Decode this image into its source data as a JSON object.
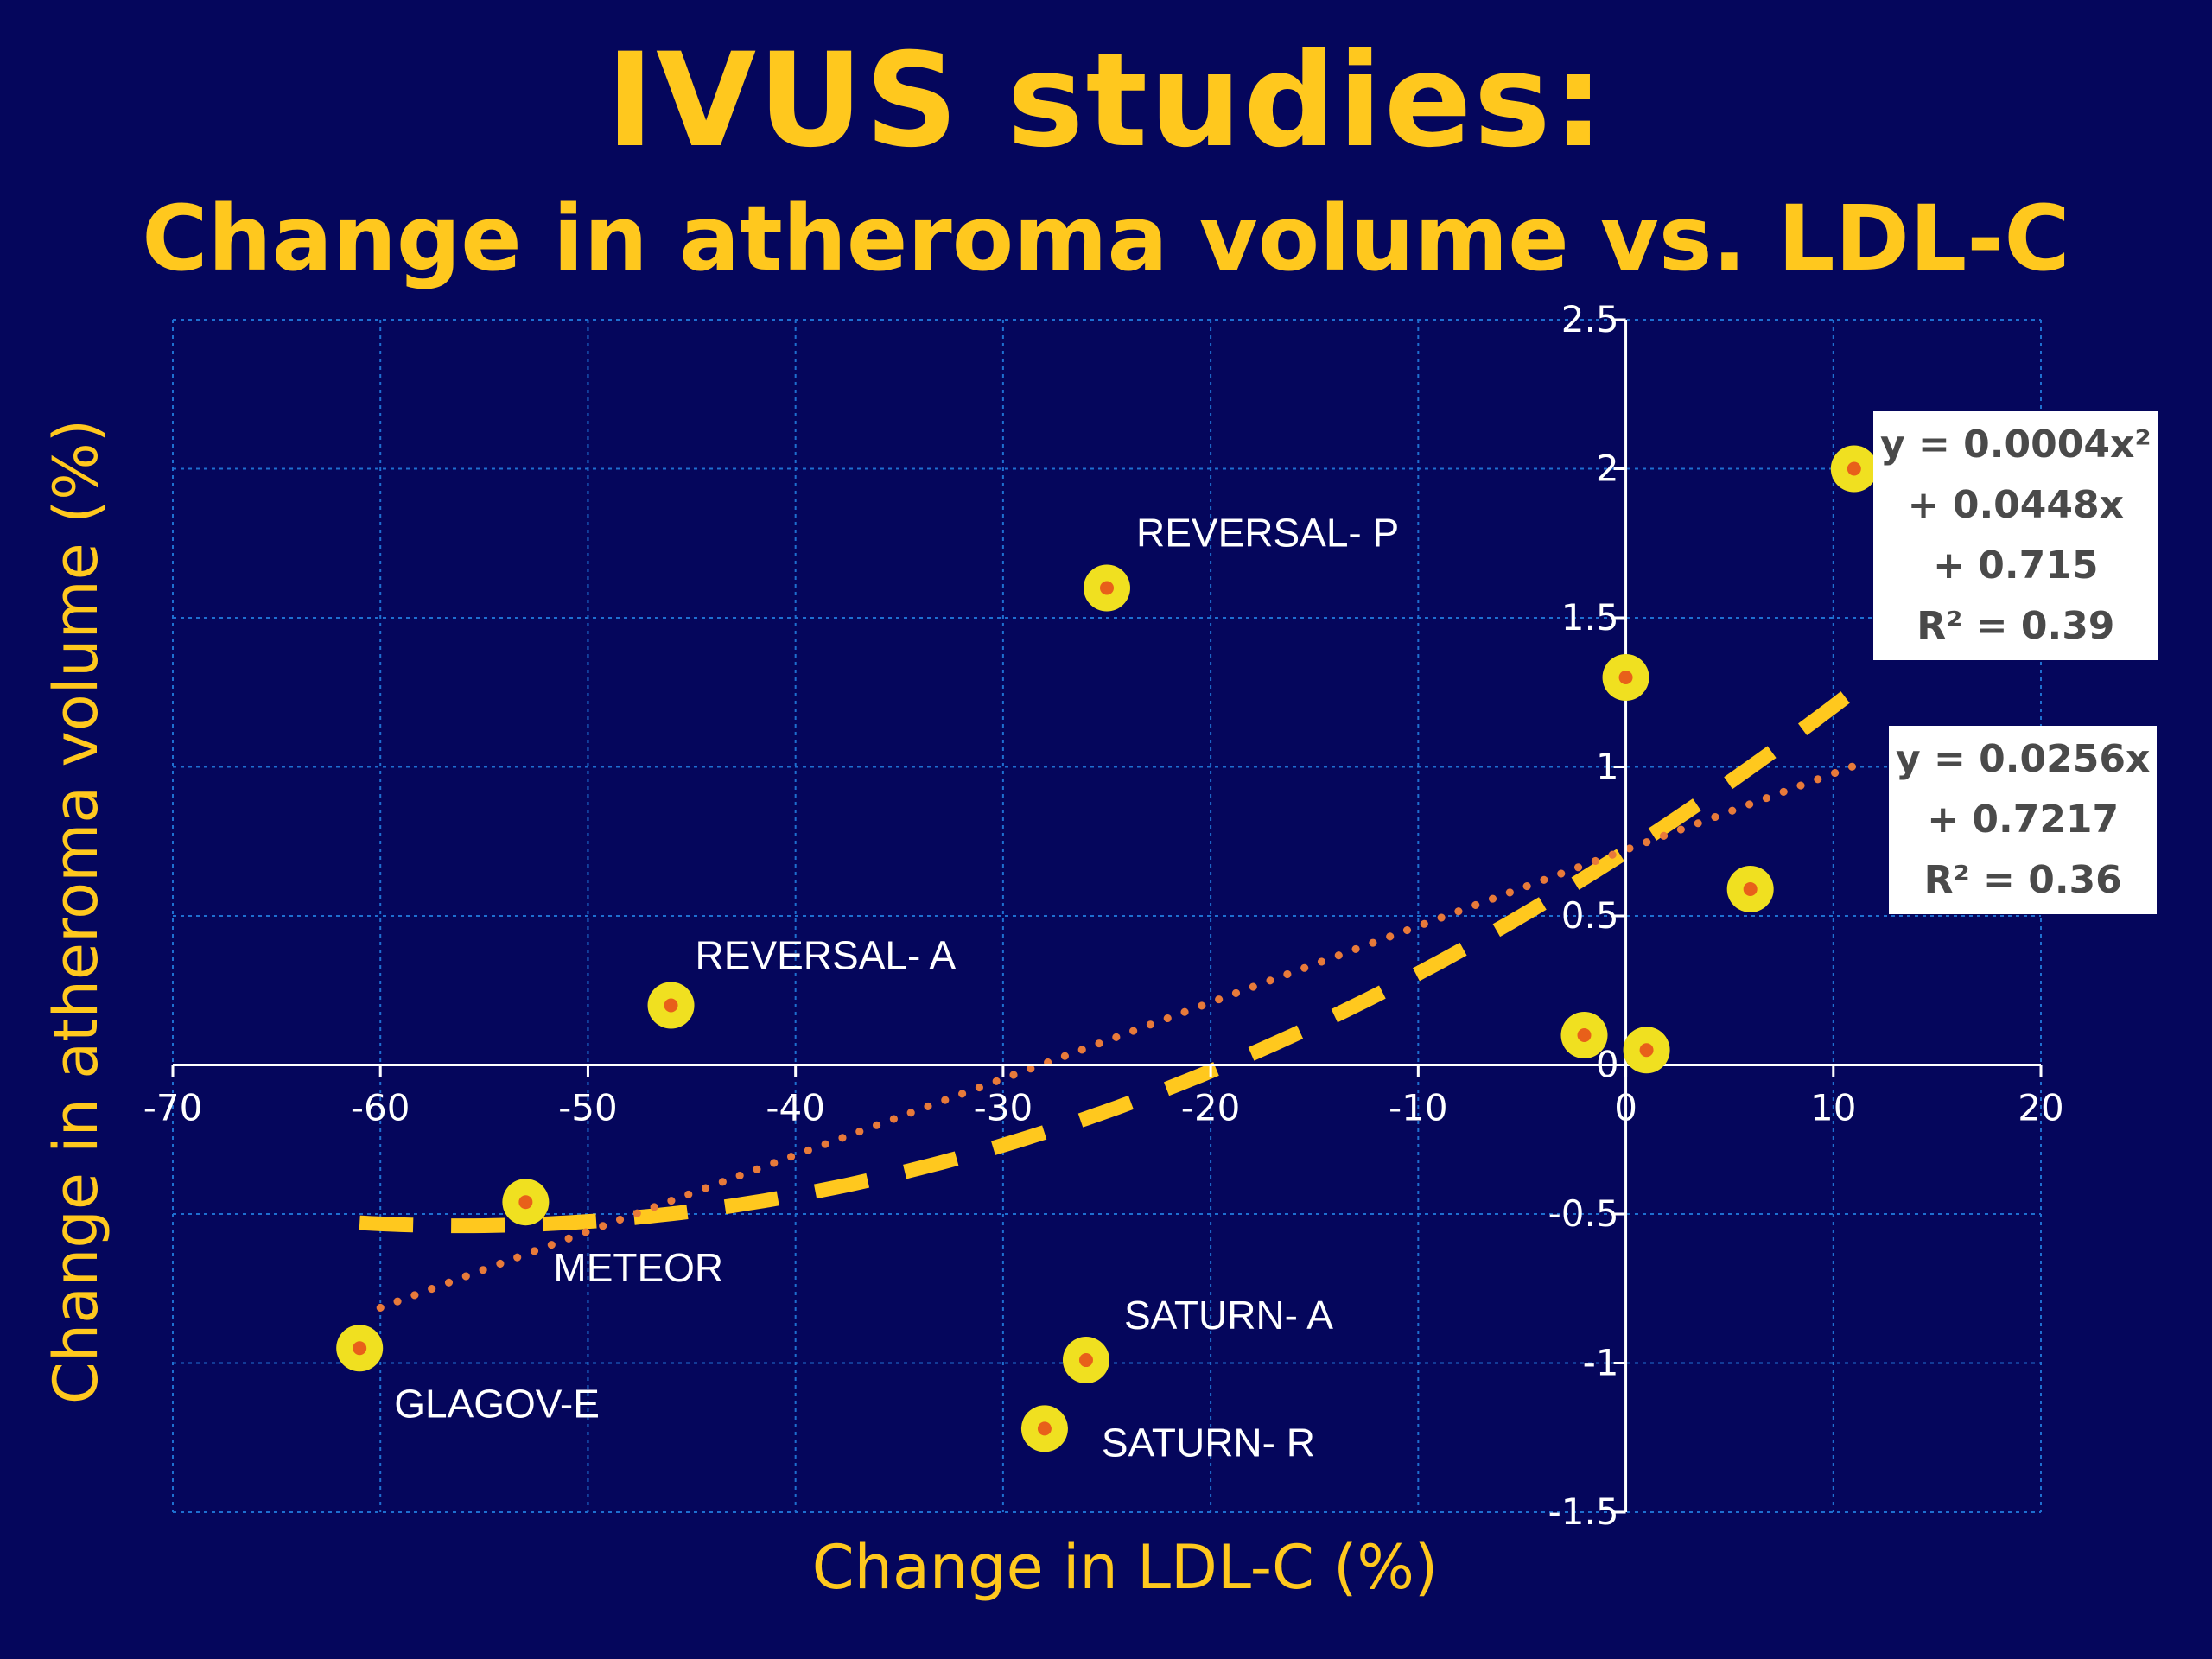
{
  "slide": {
    "title": "IVUS studies:",
    "subtitle": "Change in atheroma volume vs.  LDL-C"
  },
  "colors": {
    "background": "#05065c",
    "title": "#ffc81e",
    "marker_fill": "#f0e020",
    "marker_center": "#e8601a",
    "poly_trend": "#ffc81e",
    "linear_trend": "#e87a3a",
    "grid": "#1e6fd0",
    "axis": "#ffffff"
  },
  "chart_data": {
    "type": "scatter",
    "title": "",
    "xlabel": "Change in LDL-C (%)",
    "ylabel": "Change in atheroma volume (%)",
    "xlim": [
      -70,
      20
    ],
    "ylim": [
      -1.5,
      2.5
    ],
    "xticks": [
      -70,
      -60,
      -50,
      -40,
      -30,
      -20,
      -10,
      0,
      10,
      20
    ],
    "yticks": [
      -1.5,
      -1,
      -0.5,
      0,
      0.5,
      1,
      1.5,
      2,
      2.5
    ],
    "xtick_labels": [
      "-70",
      "-60",
      "-50",
      "-40",
      "-30",
      "-20",
      "-10",
      "0",
      "10",
      "20"
    ],
    "ytick_labels": [
      "-1.5",
      "-1",
      "-0.5",
      "0",
      "0.5",
      "1",
      "1.5",
      "2",
      "2.5"
    ],
    "grid": true,
    "points": [
      {
        "x": -61,
        "y": -0.95,
        "label": "GLAGOV-E"
      },
      {
        "x": -53,
        "y": -0.46,
        "label": "METEOR"
      },
      {
        "x": -46,
        "y": 0.2,
        "label": "REVERSAL- A"
      },
      {
        "x": -25,
        "y": 1.6,
        "label": "REVERSAL- P"
      },
      {
        "x": -26,
        "y": -0.99,
        "label": "SATURN- A"
      },
      {
        "x": -28,
        "y": -1.22,
        "label": "SATURN- R"
      },
      {
        "x": -2,
        "y": 0.1,
        "label": ""
      },
      {
        "x": 0,
        "y": 1.3,
        "label": ""
      },
      {
        "x": 1,
        "y": 0.05,
        "label": ""
      },
      {
        "x": 6,
        "y": 0.59,
        "label": ""
      },
      {
        "x": 11,
        "y": 2.0,
        "label": ""
      }
    ],
    "trendlines": [
      {
        "kind": "polynomial",
        "coefficients": [
          0.0004,
          0.0448,
          0.715
        ],
        "equation_lines": [
          "y = 0.0004x²",
          "+ 0.0448x",
          "+ 0.715",
          "R² = 0.39"
        ]
      },
      {
        "kind": "linear",
        "coefficients": [
          0.0256,
          0.7217
        ],
        "equation_lines": [
          "y = 0.0256x",
          "+ 0.7217",
          "R² = 0.36"
        ]
      }
    ]
  }
}
